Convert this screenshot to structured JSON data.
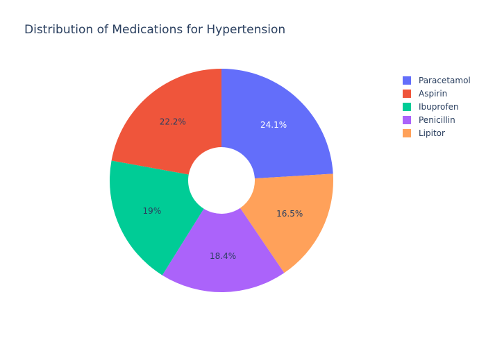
{
  "chart_data": {
    "type": "pie",
    "hole": true,
    "title": "Distribution of Medications for Hypertension",
    "legend_position": "right",
    "slices": [
      {
        "label": "Paracetamol",
        "percent": 24.1,
        "display": "24.1%",
        "color": "#636efa",
        "text_color": "#ffffff"
      },
      {
        "label": "Lipitor",
        "percent": 16.5,
        "display": "16.5%",
        "color": "#ffa15a",
        "text_color": "#2a3f5f"
      },
      {
        "label": "Penicillin",
        "percent": 18.4,
        "display": "18.4%",
        "color": "#ab63fa",
        "text_color": "#2a3f5f"
      },
      {
        "label": "Ibuprofen",
        "percent": 19.0,
        "display": "19%",
        "color": "#00cc96",
        "text_color": "#2a3f5f"
      },
      {
        "label": "Aspirin",
        "percent": 22.2,
        "display": "22.2%",
        "color": "#ef553b",
        "text_color": "#2a3f5f"
      }
    ],
    "legend": [
      {
        "label": "Paracetamol",
        "color": "#636efa"
      },
      {
        "label": "Aspirin",
        "color": "#ef553b"
      },
      {
        "label": "Ibuprofen",
        "color": "#00cc96"
      },
      {
        "label": "Penicillin",
        "color": "#ab63fa"
      },
      {
        "label": "Lipitor",
        "color": "#ffa15a"
      }
    ]
  }
}
